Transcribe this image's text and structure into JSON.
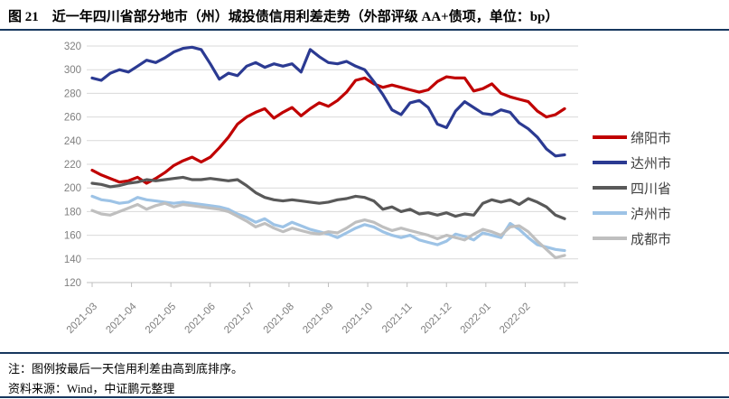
{
  "header": {
    "title": "图 21　近一年四川省部分地市（州）城投债信用利差走势（外部评级 AA+债项，单位：bp）"
  },
  "footer": {
    "note": "注：图例按最后一天信用利差由高到底排序。",
    "source": "资料来源：Wind，中证鹏元整理"
  },
  "colors": {
    "rule": "#17375E",
    "grid": "#D9D9D9",
    "axis": "#BFBFBF",
    "tick_label": "#7F7F7F",
    "legend_text": "#3F3F3F"
  },
  "chart_data": {
    "type": "line",
    "title": "近一年四川省部分地市（州）城投债信用利差走势",
    "unit": "bp",
    "grid": "horizontal",
    "legend_position": "right",
    "ylim": [
      120,
      320
    ],
    "y_ticks": [
      320,
      300,
      280,
      260,
      240,
      220,
      200,
      180,
      160,
      140,
      120
    ],
    "x_labels": [
      "2021-03",
      "2021-04",
      "2021-05",
      "2021-06",
      "2021-07",
      "2021-08",
      "2021-09",
      "2021-10",
      "2021-11",
      "2021-12",
      "2022-01",
      "2022-02"
    ],
    "x_note": "weekly samples, 2021-03 through 2022-02",
    "series": [
      {
        "name": "绵阳市",
        "color": "#C00000",
        "values": [
          215,
          211,
          208,
          205,
          206,
          209,
          204,
          208,
          213,
          219,
          223,
          226,
          222,
          226,
          234,
          243,
          254,
          260,
          264,
          267,
          259,
          264,
          268,
          261,
          267,
          272,
          269,
          274,
          281,
          291,
          293,
          288,
          285,
          287,
          285,
          283,
          281,
          283,
          290,
          294,
          293,
          293,
          282,
          284,
          288,
          280,
          277,
          275,
          273,
          265,
          260,
          262,
          267
        ]
      },
      {
        "name": "达州市",
        "color": "#2B3A92",
        "values": [
          293,
          291,
          297,
          300,
          298,
          303,
          308,
          306,
          310,
          315,
          318,
          319,
          317,
          305,
          292,
          297,
          295,
          303,
          306,
          302,
          305,
          303,
          305,
          298,
          317,
          311,
          306,
          305,
          307,
          303,
          300,
          290,
          279,
          266,
          262,
          272,
          274,
          268,
          254,
          251,
          265,
          273,
          268,
          263,
          262,
          266,
          264,
          255,
          250,
          243,
          233,
          227,
          228
        ]
      },
      {
        "name": "四川省",
        "color": "#595959",
        "values": [
          204,
          203,
          201,
          202,
          204,
          205,
          207,
          206,
          207,
          208,
          209,
          207,
          207,
          208,
          207,
          206,
          207,
          202,
          196,
          192,
          190,
          189,
          190,
          189,
          188,
          187,
          188,
          190,
          191,
          193,
          192,
          189,
          182,
          184,
          180,
          182,
          178,
          179,
          177,
          179,
          176,
          178,
          177,
          187,
          190,
          188,
          190,
          186,
          191,
          188,
          184,
          177,
          174
        ]
      },
      {
        "name": "泸州市",
        "color": "#9DC3E6",
        "values": [
          193,
          190,
          189,
          187,
          188,
          192,
          190,
          189,
          188,
          187,
          188,
          187,
          186,
          185,
          184,
          182,
          178,
          175,
          171,
          174,
          169,
          167,
          171,
          168,
          165,
          163,
          161,
          158,
          162,
          166,
          169,
          167,
          163,
          160,
          158,
          160,
          156,
          154,
          152,
          155,
          161,
          159,
          156,
          162,
          160,
          158,
          170,
          165,
          158,
          152,
          150,
          148,
          147
        ]
      },
      {
        "name": "成都市",
        "color": "#BFBFBF",
        "values": [
          181,
          178,
          177,
          180,
          183,
          186,
          182,
          185,
          187,
          184,
          186,
          185,
          184,
          183,
          182,
          180,
          176,
          172,
          167,
          170,
          166,
          163,
          166,
          164,
          162,
          161,
          163,
          162,
          166,
          171,
          173,
          171,
          167,
          164,
          166,
          164,
          162,
          160,
          157,
          160,
          158,
          156,
          161,
          165,
          163,
          160,
          167,
          168,
          163,
          155,
          148,
          141,
          143
        ]
      }
    ]
  }
}
